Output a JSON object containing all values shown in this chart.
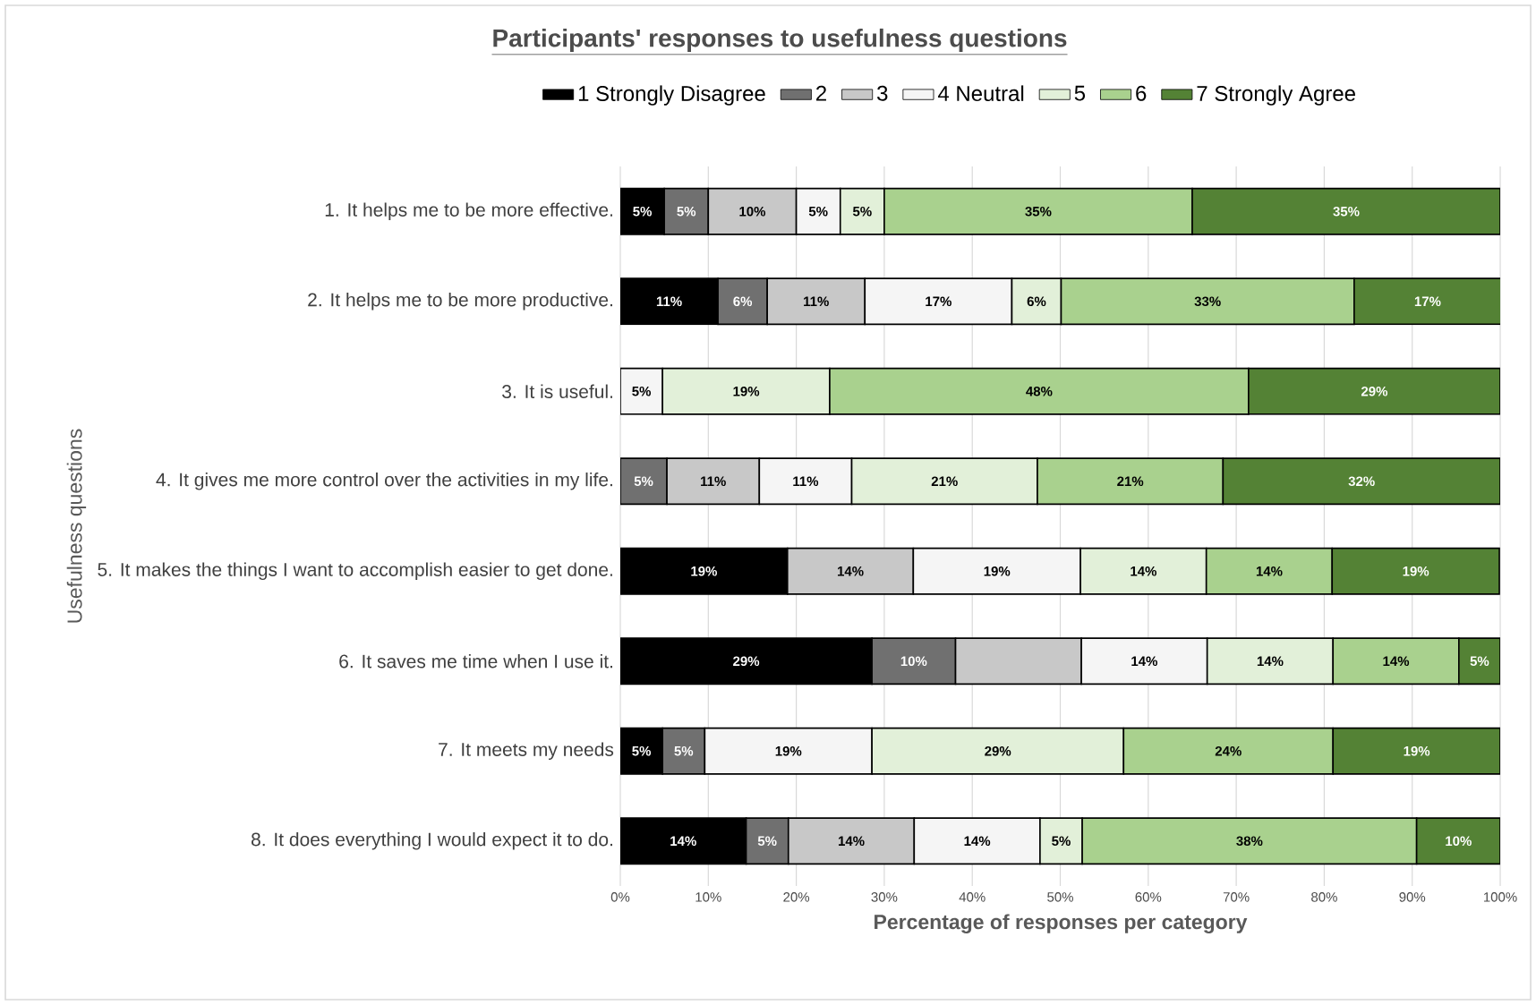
{
  "chart_data": {
    "type": "bar",
    "orientation": "horizontal",
    "stacked": true,
    "title": "Participants' responses to usefulness questions",
    "xlabel": "Percentage of responses per category",
    "ylabel": "Usefulness questions",
    "categories": [
      "1. It helps me to be more effective.",
      "2. It helps me to be more productive.",
      "3. It is useful.",
      "4. It gives me more control over the activities in my life.",
      "5. It makes the things I want to accomplish easier to get done.",
      "6. It saves me time when I use it.",
      "7. It meets my needs",
      "8. It does everything I would expect it to do."
    ],
    "series": [
      {
        "name": "1 Strongly Disagree",
        "color": "#000000",
        "values": [
          5,
          11.1,
          null,
          null,
          19.0,
          28.6,
          4.8,
          14.3
        ],
        "value_labels": [
          "5%",
          "11%",
          null,
          null,
          "19%",
          "29%",
          "5%",
          "14%"
        ]
      },
      {
        "name": "2",
        "color": "#707070",
        "values": [
          5,
          5.6,
          null,
          5.3,
          null,
          9.5,
          4.8,
          4.8
        ],
        "value_labels": [
          "5%",
          "6%",
          null,
          "5%",
          null,
          "10%",
          "5%",
          "5%"
        ]
      },
      {
        "name": "3",
        "color": "#c8c8c8",
        "values": [
          10,
          11.1,
          null,
          10.5,
          14.3,
          14.3,
          null,
          14.3
        ],
        "value_labels": [
          "10%",
          "11%",
          null,
          "11%",
          "14%",
          null,
          null,
          "14%"
        ]
      },
      {
        "name": "4 Neutral",
        "color": "#f5f5f5",
        "values": [
          5,
          16.7,
          4.8,
          10.5,
          19.0,
          14.3,
          19.0,
          14.3
        ],
        "value_labels": [
          "5%",
          "17%",
          "5%",
          "11%",
          "19%",
          "14%",
          "19%",
          "14%"
        ]
      },
      {
        "name": "5",
        "color": "#e2f0d9",
        "values": [
          5,
          5.6,
          19.0,
          21.1,
          14.3,
          14.3,
          28.6,
          4.8
        ],
        "value_labels": [
          "5%",
          "6%",
          "19%",
          "21%",
          "14%",
          "14%",
          "29%",
          "5%"
        ]
      },
      {
        "name": "6",
        "color": "#a9d18e",
        "values": [
          35,
          33.3,
          47.6,
          21.1,
          14.3,
          14.3,
          23.8,
          38.0
        ],
        "value_labels": [
          "35%",
          "33%",
          "48%",
          "21%",
          "14%",
          "14%",
          "24%",
          "38%"
        ]
      },
      {
        "name": "7 Strongly Agree",
        "color": "#548235",
        "values": [
          35,
          16.7,
          28.6,
          31.5,
          19.0,
          4.7,
          19.0,
          9.5
        ],
        "value_labels": [
          "35%",
          "17%",
          "29%",
          "32%",
          "19%",
          "5%",
          "19%",
          "10%"
        ]
      }
    ],
    "xlim": [
      0,
      100
    ],
    "xticks": [
      {
        "value": 0,
        "label": "0%"
      },
      {
        "value": 10,
        "label": "10%"
      },
      {
        "value": 20,
        "label": "20%"
      },
      {
        "value": 30,
        "label": "30%"
      },
      {
        "value": 40,
        "label": "40%"
      },
      {
        "value": 50,
        "label": "50%"
      },
      {
        "value": 60,
        "label": "60%"
      },
      {
        "value": 70,
        "label": "70%"
      },
      {
        "value": 80,
        "label": "80%"
      },
      {
        "value": 90,
        "label": "90%"
      },
      {
        "value": 100,
        "label": "100%"
      }
    ],
    "grid": "x",
    "legend": "top"
  }
}
